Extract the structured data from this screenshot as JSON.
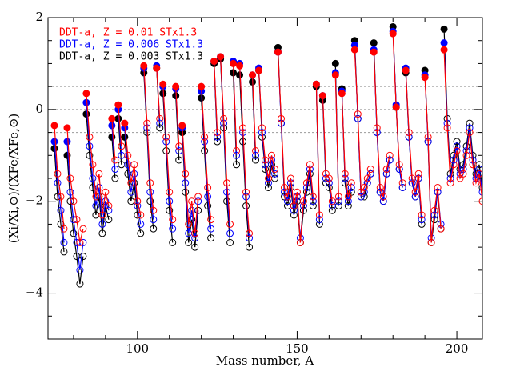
{
  "chart_data": {
    "type": "line",
    "xlabel": "Mass number, A",
    "ylabel": "(Xi/Xi,⊙)/(XFe/XFe,⊙)",
    "xlim": [
      72,
      208
    ],
    "ylim": [
      -5,
      2
    ],
    "xticks": [
      100,
      150,
      200
    ],
    "yticks": [
      {
        "value": -4,
        "label": "−4"
      },
      {
        "value": -2,
        "label": "−2"
      },
      0,
      2
    ],
    "xminorticks": [
      80,
      90,
      110,
      120,
      130,
      140,
      160,
      170,
      180,
      190
    ],
    "yminorticks": [
      -4.5,
      -3.5,
      -3,
      -2.5,
      -1.5,
      -1,
      -0.5,
      0.5,
      1,
      1.5
    ],
    "hlines": [
      0.5,
      0,
      -0.5
    ],
    "legend": "upper left",
    "x": [
      74,
      75,
      76,
      77,
      null,
      78,
      79,
      80,
      81,
      82,
      83,
      null,
      84,
      85,
      86,
      87,
      88,
      89,
      90,
      91,
      null,
      92,
      93,
      null,
      94,
      95,
      null,
      96,
      97,
      98,
      99,
      100,
      101,
      null,
      102,
      103,
      104,
      105,
      null,
      106,
      107,
      null,
      108,
      109,
      110,
      111,
      null,
      112,
      113,
      null,
      114,
      115,
      116,
      117,
      118,
      119,
      null,
      120,
      121,
      122,
      123,
      null,
      124,
      125,
      null,
      126,
      127,
      128,
      129,
      null,
      130,
      131,
      null,
      132,
      133,
      134,
      135,
      null,
      136,
      137,
      null,
      138,
      139,
      140,
      141,
      142,
      143,
      null,
      144,
      145,
      146,
      147,
      148,
      149,
      150,
      151,
      152,
      153,
      154,
      155,
      null,
      156,
      157,
      null,
      158,
      159,
      160,
      161,
      null,
      162,
      163,
      null,
      164,
      165,
      166,
      167,
      null,
      168,
      169,
      170,
      171,
      172,
      173,
      null,
      174,
      175,
      176,
      177,
      178,
      179,
      null,
      180,
      181,
      182,
      183,
      null,
      184,
      185,
      186,
      187,
      188,
      189,
      null,
      190,
      191,
      192,
      193,
      194,
      195,
      null,
      196,
      197,
      198,
      199,
      200,
      201,
      202,
      203,
      204,
      205,
      206,
      207,
      208
    ],
    "filled": [
      true,
      false,
      false,
      false,
      null,
      true,
      false,
      false,
      false,
      false,
      false,
      null,
      true,
      false,
      false,
      false,
      false,
      false,
      false,
      false,
      null,
      true,
      false,
      null,
      true,
      false,
      null,
      true,
      false,
      false,
      false,
      false,
      false,
      null,
      true,
      false,
      false,
      false,
      null,
      true,
      false,
      null,
      true,
      false,
      false,
      false,
      null,
      true,
      false,
      null,
      true,
      false,
      false,
      false,
      false,
      false,
      null,
      true,
      false,
      false,
      false,
      null,
      true,
      false,
      null,
      true,
      false,
      false,
      false,
      null,
      true,
      false,
      null,
      true,
      false,
      false,
      false,
      null,
      true,
      false,
      null,
      true,
      false,
      false,
      false,
      false,
      false,
      null,
      true,
      false,
      false,
      false,
      false,
      false,
      false,
      false,
      false,
      false,
      false,
      false,
      null,
      true,
      false,
      null,
      true,
      false,
      false,
      false,
      null,
      true,
      false,
      null,
      true,
      false,
      false,
      false,
      null,
      true,
      false,
      false,
      false,
      false,
      false,
      null,
      true,
      false,
      false,
      false,
      false,
      false,
      null,
      true,
      true,
      false,
      false,
      null,
      true,
      false,
      false,
      false,
      false,
      false,
      null,
      true,
      false,
      false,
      false,
      false,
      false,
      null,
      true,
      false,
      false,
      false,
      false,
      false,
      false,
      false,
      false,
      false,
      false,
      false,
      false
    ],
    "series": [
      {
        "name": "DDT-a, Z = 0.003 STx1.3",
        "color": "#000000",
        "values": [
          -0.85,
          -1.9,
          -2.5,
          -3.1,
          null,
          -1.0,
          -2.0,
          -2.7,
          -3.2,
          -3.8,
          -3.2,
          null,
          -0.1,
          -1.0,
          -1.7,
          -2.3,
          -1.9,
          -2.7,
          -2.1,
          -2.4,
          null,
          -0.6,
          -1.5,
          null,
          -0.2,
          -1.2,
          null,
          -0.6,
          -1.4,
          -2.0,
          -1.6,
          -2.3,
          -2.7,
          null,
          0.8,
          -0.5,
          -2.0,
          -2.6,
          null,
          0.9,
          -0.4,
          null,
          0.35,
          -0.9,
          -2.2,
          -2.9,
          null,
          0.3,
          -1.1,
          null,
          -0.5,
          -1.8,
          -2.9,
          -2.4,
          -3.0,
          -2.2,
          null,
          0.25,
          -0.9,
          -2.1,
          -2.8,
          null,
          1.0,
          -0.7,
          null,
          1.1,
          -0.4,
          -2.0,
          -2.9,
          null,
          0.8,
          -1.2,
          null,
          0.75,
          -0.7,
          -2.1,
          -3.0,
          null,
          0.6,
          -1.1,
          null,
          0.85,
          -0.6,
          -1.3,
          -1.7,
          -1.2,
          -1.5,
          null,
          1.35,
          -0.3,
          -1.9,
          -2.1,
          -1.7,
          -2.3,
          -2.0,
          -2.9,
          -2.2,
          -1.8,
          -1.4,
          -2.1,
          null,
          0.5,
          -2.5,
          null,
          0.2,
          -1.6,
          -1.7,
          -2.2,
          null,
          1.0,
          -2.1,
          null,
          0.45,
          -1.6,
          -2.1,
          -1.8,
          null,
          1.5,
          -0.2,
          -1.9,
          -1.9,
          -1.6,
          -1.4,
          null,
          1.45,
          -0.5,
          -1.8,
          -2.0,
          -1.4,
          -1.1,
          null,
          1.8,
          0.05,
          -1.3,
          -1.7,
          null,
          0.8,
          -0.6,
          -1.6,
          -1.9,
          -1.5,
          -2.5,
          null,
          0.85,
          -0.7,
          -2.9,
          -2.4,
          -1.8,
          -2.6,
          null,
          1.75,
          -0.2,
          -1.4,
          -1.0,
          -0.7,
          -1.3,
          -1.2,
          -0.8,
          -0.3,
          -1.0,
          -1.4,
          -1.2,
          -1.7
        ]
      },
      {
        "name": "DDT-a, Z = 0.006 STx1.3",
        "color": "#0000ff",
        "values": [
          -0.7,
          -1.6,
          -2.2,
          -2.9,
          null,
          -0.7,
          -1.8,
          -2.4,
          -2.9,
          -3.5,
          -2.9,
          null,
          0.15,
          -0.8,
          -1.5,
          -2.1,
          -1.7,
          -2.5,
          -2.0,
          -2.2,
          null,
          -0.35,
          -1.3,
          null,
          0.0,
          -1.0,
          null,
          -0.4,
          -1.2,
          -1.8,
          -1.4,
          -2.1,
          -2.5,
          null,
          0.9,
          -0.4,
          -1.8,
          -2.4,
          null,
          0.95,
          -0.3,
          null,
          0.5,
          -0.7,
          -2.0,
          -2.6,
          null,
          0.45,
          -0.9,
          null,
          -0.4,
          -1.6,
          -2.7,
          -2.2,
          -2.8,
          -2.0,
          null,
          0.4,
          -0.7,
          -1.9,
          -2.6,
          null,
          1.05,
          -0.6,
          null,
          1.15,
          -0.3,
          -1.8,
          -2.7,
          null,
          1.05,
          -1.0,
          null,
          1.0,
          -0.5,
          -1.9,
          -2.8,
          null,
          0.75,
          -1.0,
          null,
          0.9,
          -0.5,
          -1.2,
          -1.6,
          -1.1,
          -1.4,
          null,
          1.25,
          -0.3,
          -1.8,
          -2.0,
          -1.6,
          -2.2,
          -1.9,
          -2.8,
          -2.1,
          -1.7,
          -1.3,
          -2.0,
          null,
          0.55,
          -2.4,
          null,
          0.3,
          -1.5,
          -1.6,
          -2.1,
          null,
          0.8,
          -2.0,
          null,
          0.4,
          -1.5,
          -2.0,
          -1.7,
          null,
          1.4,
          -0.2,
          -1.9,
          -1.8,
          -1.6,
          -1.4,
          null,
          1.3,
          -0.5,
          -1.8,
          -2.0,
          -1.4,
          -1.1,
          null,
          1.7,
          0.1,
          -1.3,
          -1.7,
          null,
          0.9,
          -0.6,
          -1.6,
          -1.9,
          -1.5,
          -2.4,
          null,
          0.75,
          -0.7,
          -2.8,
          -2.3,
          -1.8,
          -2.5,
          null,
          1.45,
          -0.3,
          -1.5,
          -1.1,
          -0.8,
          -1.4,
          -1.3,
          -0.9,
          -0.4,
          -1.1,
          -1.5,
          -1.3,
          -1.8
        ]
      },
      {
        "name": "DDT-a, Z = 0.01 STx1.3",
        "color": "#ff0000",
        "values": [
          -0.35,
          -1.4,
          -1.9,
          -2.6,
          null,
          -0.4,
          -1.5,
          -2.0,
          -2.4,
          -2.9,
          -2.6,
          null,
          0.35,
          -0.6,
          -1.2,
          -1.9,
          -1.4,
          -2.3,
          -1.8,
          -2.1,
          null,
          -0.2,
          -1.1,
          null,
          0.1,
          -0.8,
          null,
          -0.3,
          -1.0,
          -1.6,
          -1.2,
          -2.0,
          -2.3,
          null,
          0.95,
          -0.3,
          -1.6,
          -2.2,
          null,
          0.9,
          -0.2,
          null,
          0.55,
          -0.6,
          -1.8,
          -2.4,
          null,
          0.5,
          -0.8,
          null,
          -0.35,
          -1.4,
          -2.5,
          -2.0,
          -2.7,
          -1.9,
          null,
          0.5,
          -0.6,
          -1.7,
          -2.4,
          null,
          1.05,
          -0.5,
          null,
          1.15,
          -0.2,
          -1.6,
          -2.5,
          null,
          1.0,
          -0.9,
          null,
          0.95,
          -0.4,
          -1.8,
          -2.7,
          null,
          0.75,
          -0.9,
          null,
          0.85,
          -0.4,
          -1.1,
          -1.5,
          -1.0,
          -1.3,
          null,
          1.25,
          -0.2,
          -1.7,
          -1.9,
          -1.5,
          -2.1,
          -1.8,
          -2.9,
          -2.0,
          -1.6,
          -1.2,
          -1.9,
          null,
          0.55,
          -2.3,
          null,
          0.3,
          -1.4,
          -1.5,
          -2.0,
          null,
          0.75,
          -1.9,
          null,
          0.35,
          -1.4,
          -1.9,
          -1.6,
          null,
          1.3,
          -0.1,
          -1.8,
          -1.7,
          -1.5,
          -1.3,
          null,
          1.25,
          -0.4,
          -1.7,
          -1.9,
          -1.3,
          -1.0,
          null,
          1.65,
          0.05,
          -1.2,
          -1.6,
          null,
          0.85,
          -0.5,
          -1.5,
          -1.8,
          -1.4,
          -2.3,
          null,
          0.7,
          -0.6,
          -2.9,
          -2.2,
          -1.7,
          -2.6,
          null,
          1.3,
          -0.4,
          -1.6,
          -1.2,
          -0.9,
          -1.5,
          -1.4,
          -1.0,
          -0.5,
          -1.2,
          -1.6,
          -1.4,
          -2.0
        ]
      }
    ]
  }
}
